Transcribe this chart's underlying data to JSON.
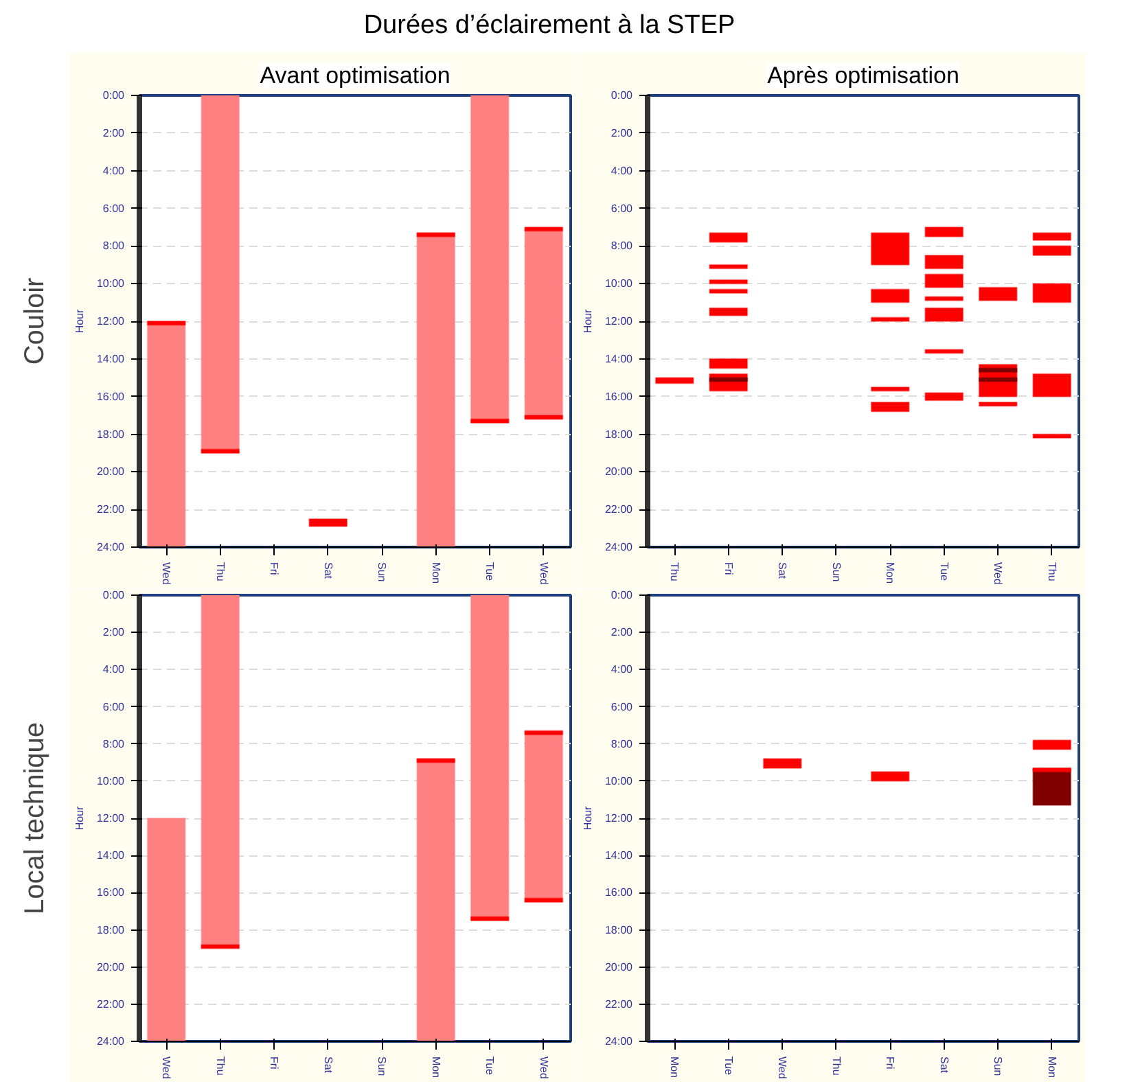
{
  "chart_data": [
    {
      "type": "bar",
      "title": "Avant optimisation",
      "annotations": [
        "Durées d’éclairement à la STEP",
        "Couloir"
      ],
      "ylabel": "Hour",
      "grid": "y",
      "categories": [
        "Wed",
        "Thu",
        "Fri",
        "Sat",
        "Sun",
        "Mon",
        "Tue",
        "Wed"
      ],
      "ylim": [
        24,
        0
      ],
      "yticks": [
        {
          "value": 0,
          "label": "0:00"
        },
        {
          "value": 2,
          "label": "2:00"
        },
        {
          "value": 4,
          "label": "4:00"
        },
        {
          "value": 6,
          "label": "6:00"
        },
        {
          "value": 8,
          "label": "8:00"
        },
        {
          "value": 10,
          "label": "10:00"
        },
        {
          "value": 12,
          "label": "12:00"
        },
        {
          "value": 14,
          "label": "14:00"
        },
        {
          "value": 16,
          "label": "16:00"
        },
        {
          "value": 18,
          "label": "18:00"
        },
        {
          "value": 20,
          "label": "20:00"
        },
        {
          "value": 22,
          "label": "22:00"
        },
        {
          "value": 24,
          "label": "24:00"
        }
      ],
      "series": [
        {
          "color": "#ff8080",
          "base": [
            12,
            0,
            null,
            null,
            null,
            7.3,
            0,
            7.1
          ],
          "values": [
            12,
            19,
            null,
            null,
            null,
            16.7,
            17.4,
            10.1
          ]
        },
        {
          "color": "#ff0000",
          "base": [
            12,
            18.8,
            null,
            22.5,
            null,
            7.3,
            17.2,
            7.0
          ],
          "values": [
            0.2,
            0.2,
            null,
            0.4,
            null,
            0.2,
            0.2,
            0.2
          ]
        },
        {
          "color": "#ff0000",
          "base": [
            null,
            null,
            null,
            null,
            null,
            null,
            null,
            17.0
          ],
          "values": [
            null,
            null,
            null,
            null,
            null,
            null,
            null,
            0.2
          ]
        }
      ]
    },
    {
      "type": "bar",
      "title": "Après optimisation",
      "ylabel": "Hour",
      "grid": "y",
      "categories": [
        "Thu",
        "Fri",
        "Sat",
        "Sun",
        "Mon",
        "Tue",
        "Wed",
        "Thu"
      ],
      "ylim": [
        24,
        0
      ],
      "yticks": [
        {
          "value": 0,
          "label": "0:00"
        },
        {
          "value": 2,
          "label": "2:00"
        },
        {
          "value": 4,
          "label": "4:00"
        },
        {
          "value": 6,
          "label": "6:00"
        },
        {
          "value": 8,
          "label": "8:00"
        },
        {
          "value": 10,
          "label": "10:00"
        },
        {
          "value": 12,
          "label": "12:00"
        },
        {
          "value": 14,
          "label": "14:00"
        },
        {
          "value": 16,
          "label": "16:00"
        },
        {
          "value": 18,
          "label": "18:00"
        },
        {
          "value": 20,
          "label": "20:00"
        },
        {
          "value": 22,
          "label": "22:00"
        },
        {
          "value": 24,
          "label": "24:00"
        }
      ],
      "series": [
        {
          "color": "#ff0000",
          "base": [
            15.0,
            7.3,
            null,
            null,
            7.3,
            7.0,
            10.2,
            7.3
          ],
          "values": [
            0.3,
            0.5,
            null,
            null,
            1.7,
            0.5,
            0.7,
            0.4
          ]
        },
        {
          "color": "#ff0000",
          "base": [
            null,
            9.0,
            null,
            null,
            10.3,
            8.5,
            14.3,
            8.0
          ],
          "values": [
            null,
            0.2,
            null,
            null,
            0.7,
            0.7,
            1.7,
            0.5
          ]
        },
        {
          "color": "#ff0000",
          "base": [
            null,
            9.8,
            null,
            null,
            11.8,
            9.5,
            16.3,
            10.0
          ],
          "values": [
            null,
            0.2,
            null,
            null,
            0.2,
            0.7,
            0.2,
            1.0
          ]
        },
        {
          "color": "#ff0000",
          "base": [
            null,
            10.3,
            null,
            null,
            15.5,
            10.7,
            null,
            14.8
          ],
          "values": [
            null,
            0.2,
            null,
            null,
            0.2,
            0.2,
            null,
            1.2
          ]
        },
        {
          "color": "#ff0000",
          "base": [
            null,
            11.3,
            null,
            null,
            16.3,
            11.3,
            null,
            18.0
          ],
          "values": [
            null,
            0.4,
            null,
            null,
            0.5,
            0.7,
            null,
            0.2
          ]
        },
        {
          "color": "#ff0000",
          "base": [
            null,
            14.0,
            null,
            null,
            null,
            13.5,
            null,
            null
          ],
          "values": [
            null,
            0.5,
            null,
            null,
            null,
            0.2,
            null,
            null
          ]
        },
        {
          "color": "#ff0000",
          "base": [
            null,
            14.8,
            null,
            null,
            null,
            15.8,
            null,
            null
          ],
          "values": [
            null,
            0.9,
            null,
            null,
            null,
            0.4,
            null,
            null
          ]
        },
        {
          "color": "#800000",
          "base": [
            null,
            15.0,
            null,
            null,
            null,
            null,
            14.5,
            null
          ],
          "values": [
            null,
            0.2,
            null,
            null,
            null,
            null,
            0.2,
            null
          ]
        },
        {
          "color": "#800000",
          "base": [
            null,
            null,
            null,
            null,
            null,
            null,
            15.0,
            null
          ],
          "values": [
            null,
            null,
            null,
            null,
            null,
            null,
            0.2,
            null
          ]
        }
      ]
    },
    {
      "type": "bar",
      "annotations": [
        "Local technique"
      ],
      "ylabel": "Hour",
      "grid": "y",
      "categories": [
        "Wed",
        "Thu",
        "Fri",
        "Sat",
        "Sun",
        "Mon",
        "Tue",
        "Wed"
      ],
      "ylim": [
        24,
        0
      ],
      "yticks": [
        {
          "value": 0,
          "label": "0:00"
        },
        {
          "value": 2,
          "label": "2:00"
        },
        {
          "value": 4,
          "label": "4:00"
        },
        {
          "value": 6,
          "label": "6:00"
        },
        {
          "value": 8,
          "label": "8:00"
        },
        {
          "value": 10,
          "label": "10:00"
        },
        {
          "value": 12,
          "label": "12:00"
        },
        {
          "value": 14,
          "label": "14:00"
        },
        {
          "value": 16,
          "label": "16:00"
        },
        {
          "value": 18,
          "label": "18:00"
        },
        {
          "value": 20,
          "label": "20:00"
        },
        {
          "value": 22,
          "label": "22:00"
        },
        {
          "value": 24,
          "label": "24:00"
        }
      ],
      "series": [
        {
          "color": "#ff8080",
          "base": [
            12,
            0,
            null,
            null,
            null,
            8.8,
            0,
            7.3
          ],
          "values": [
            12,
            19,
            null,
            null,
            null,
            15.2,
            17.5,
            9.2
          ]
        },
        {
          "color": "#ff0000",
          "base": [
            null,
            18.8,
            null,
            null,
            null,
            8.8,
            17.3,
            7.3
          ],
          "values": [
            null,
            0.2,
            null,
            null,
            null,
            0.2,
            0.2,
            0.2
          ]
        },
        {
          "color": "#ff0000",
          "base": [
            null,
            null,
            null,
            null,
            null,
            null,
            null,
            16.3
          ],
          "values": [
            null,
            null,
            null,
            null,
            null,
            null,
            null,
            0.2
          ]
        }
      ]
    },
    {
      "type": "bar",
      "ylabel": "Hour",
      "grid": "y",
      "categories": [
        "Mon",
        "Tue",
        "Wed",
        "Thu",
        "Fri",
        "Sat",
        "Sun",
        "Mon"
      ],
      "ylim": [
        24,
        0
      ],
      "yticks": [
        {
          "value": 0,
          "label": "0:00"
        },
        {
          "value": 2,
          "label": "2:00"
        },
        {
          "value": 4,
          "label": "4:00"
        },
        {
          "value": 6,
          "label": "6:00"
        },
        {
          "value": 8,
          "label": "8:00"
        },
        {
          "value": 10,
          "label": "10:00"
        },
        {
          "value": 12,
          "label": "12:00"
        },
        {
          "value": 14,
          "label": "14:00"
        },
        {
          "value": 16,
          "label": "16:00"
        },
        {
          "value": 18,
          "label": "18:00"
        },
        {
          "value": 20,
          "label": "20:00"
        },
        {
          "value": 22,
          "label": "22:00"
        },
        {
          "value": 24,
          "label": "24:00"
        }
      ],
      "series": [
        {
          "color": "#ff0000",
          "base": [
            null,
            null,
            8.8,
            null,
            9.5,
            null,
            null,
            7.8
          ],
          "values": [
            null,
            null,
            0.5,
            null,
            0.5,
            null,
            null,
            0.5
          ]
        },
        {
          "color": "#800000",
          "base": [
            null,
            null,
            null,
            null,
            null,
            null,
            null,
            9.3
          ],
          "values": [
            null,
            null,
            null,
            null,
            null,
            null,
            null,
            2.0
          ]
        },
        {
          "color": "#ff0000",
          "base": [
            null,
            null,
            null,
            null,
            null,
            null,
            null,
            9.3
          ],
          "values": [
            null,
            null,
            null,
            null,
            null,
            null,
            null,
            0.2
          ]
        }
      ]
    }
  ]
}
